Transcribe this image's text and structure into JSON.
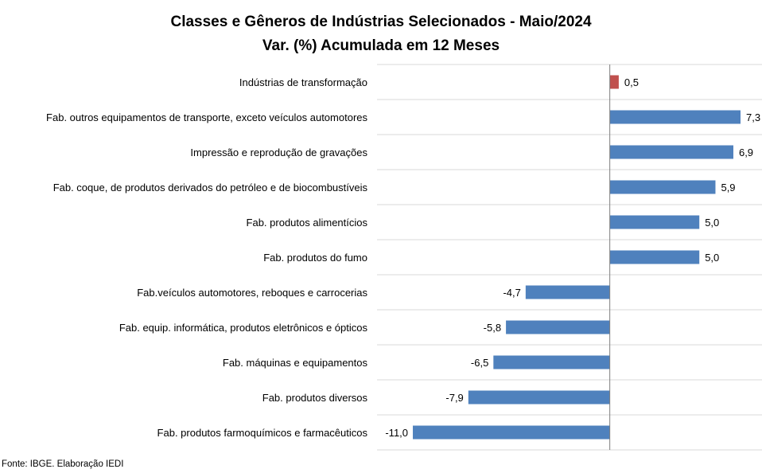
{
  "chart_data": {
    "type": "bar",
    "orientation": "horizontal",
    "title": "Classes e Gêneros de Indústrias Selecionados - Maio/2024",
    "subtitle": "Var. (%) Acumulada em 12 Meses",
    "categories": [
      "Indústrias de transformação",
      "Fab. outros equipamentos de transporte, exceto veículos automotores",
      "Impressão e reprodução de gravações",
      "Fab. coque, de produtos derivados do petróleo e de biocombustíveis",
      "Fab. produtos alimentícios",
      "Fab. produtos do fumo",
      "Fab.veículos automotores, reboques e carrocerias",
      "Fab. equip. informática, produtos eletrônicos e ópticos",
      "Fab. máquinas e equipamentos",
      "Fab. produtos diversos",
      "Fab. produtos farmoquímicos e farmacêuticos"
    ],
    "values": [
      0.5,
      7.3,
      6.9,
      5.9,
      5.0,
      5.0,
      -4.7,
      -5.8,
      -6.5,
      -7.9,
      -11.0
    ],
    "value_labels": [
      "0,5",
      "7,3",
      "6,9",
      "5,9",
      "5,0",
      "5,0",
      "-4,7",
      "-5,8",
      "-6,5",
      "-7,9",
      "-11,0"
    ],
    "bar_colors": [
      "#C0504D",
      "#4F81BD",
      "#4F81BD",
      "#4F81BD",
      "#4F81BD",
      "#4F81BD",
      "#4F81BD",
      "#4F81BD",
      "#4F81BD",
      "#4F81BD",
      "#4F81BD"
    ],
    "xlim": [
      -13.0,
      8.5
    ],
    "grid": "horizontal separators",
    "legend": "none"
  },
  "source": "Fonte: IBGE. Elaboração IEDI"
}
